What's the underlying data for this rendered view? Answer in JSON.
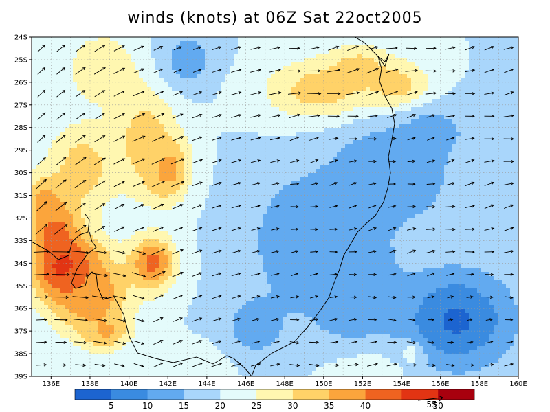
{
  "title": "winds (knots) at 06Z Sat 22oct2005",
  "lat_ticks": [
    "24S",
    "25S",
    "26S",
    "27S",
    "28S",
    "29S",
    "30S",
    "31S",
    "32S",
    "33S",
    "34S",
    "35S",
    "36S",
    "37S",
    "38S",
    "39S"
  ],
  "lon_ticks": [
    "136E",
    "138E",
    "140E",
    "142E",
    "144E",
    "146E",
    "148E",
    "150E",
    "152E",
    "154E",
    "156E",
    "158E",
    "160E"
  ],
  "colorbar": {
    "colors": [
      "#1c64d0",
      "#3a8be0",
      "#62aaf0",
      "#a9d6fb",
      "#e4fbfb",
      "#fff7b0",
      "#ffd268",
      "#fba53c",
      "#ef6320",
      "#e23413",
      "#a8000e"
    ],
    "labels": [
      "5",
      "10",
      "15",
      "20",
      "25",
      "30",
      "35",
      "40",
      "50"
    ]
  },
  "reference_vector": {
    "label": "55"
  },
  "fields": {
    "background_speed": 20,
    "blobs": [
      {
        "lon": 136.8,
        "lat": -34.2,
        "speed": 52,
        "rlon": 1.7,
        "rlat": 1.5
      },
      {
        "lon": 136.2,
        "lat": -32.5,
        "speed": 45,
        "rlon": 1.2,
        "rlat": 1.5
      },
      {
        "lon": 135.8,
        "lat": -31.2,
        "speed": 38,
        "rlon": 1.2,
        "rlat": 1.1
      },
      {
        "lon": 138.0,
        "lat": -35.4,
        "speed": 40,
        "rlon": 2.0,
        "rlat": 1.8
      },
      {
        "lon": 141.2,
        "lat": -34.0,
        "speed": 42,
        "rlon": 1.2,
        "rlat": 1.2
      },
      {
        "lon": 141.9,
        "lat": -29.8,
        "speed": 40,
        "rlon": 1.2,
        "rlat": 1.4
      },
      {
        "lon": 140.8,
        "lat": -28.5,
        "speed": 33,
        "rlon": 1.6,
        "rlat": 2.4
      },
      {
        "lon": 137.6,
        "lat": -29.8,
        "speed": 33,
        "rlon": 1.8,
        "rlat": 2.0
      },
      {
        "lon": 138.8,
        "lat": -37.0,
        "speed": 36,
        "rlon": 1.2,
        "rlat": 0.8
      },
      {
        "lon": 138.6,
        "lat": -25.4,
        "speed": 30,
        "rlon": 1.8,
        "rlat": 1.6
      },
      {
        "lon": 150.0,
        "lat": -26.4,
        "speed": 34,
        "rlon": 3.0,
        "rlat": 1.4
      },
      {
        "lon": 153.8,
        "lat": -26.4,
        "speed": 36,
        "rlon": 1.6,
        "rlat": 1.2
      },
      {
        "lon": 151.8,
        "lat": -25.4,
        "speed": 33,
        "rlon": 1.6,
        "rlat": 1.0
      },
      {
        "lon": 152.2,
        "lat": -38.6,
        "speed": 27,
        "rlon": 2.2,
        "rlat": 1.2
      },
      {
        "lon": 143.5,
        "lat": -38.4,
        "speed": 24,
        "rlon": 2.0,
        "rlat": 0.8
      },
      {
        "lon": 149.0,
        "lat": -33.0,
        "speed": 11,
        "rlon": 3.0,
        "rlat": 3.2
      },
      {
        "lon": 153.5,
        "lat": -30.0,
        "speed": 10,
        "rlon": 3.2,
        "rlat": 2.4
      },
      {
        "lon": 156.8,
        "lat": -36.5,
        "speed": 4,
        "rlon": 3.0,
        "rlat": 2.2
      },
      {
        "lon": 151.5,
        "lat": -35.0,
        "speed": 11,
        "rlon": 2.4,
        "rlat": 3.0
      },
      {
        "lon": 146.5,
        "lat": -36.8,
        "speed": 12,
        "rlon": 1.6,
        "rlat": 1.4
      },
      {
        "lon": 155.5,
        "lat": -28.2,
        "speed": 13,
        "rlon": 2.2,
        "rlat": 1.2
      },
      {
        "lon": 143.0,
        "lat": -25.0,
        "speed": 12,
        "rlon": 1.4,
        "rlat": 1.2
      },
      {
        "lon": 154.5,
        "lat": -38.0,
        "speed": 22,
        "rlon": 0.6,
        "rlat": 0.5
      },
      {
        "lon": 158.8,
        "lat": -30.0,
        "speed": 20,
        "rlon": 1.2,
        "rlat": 2.0
      }
    ]
  }
}
